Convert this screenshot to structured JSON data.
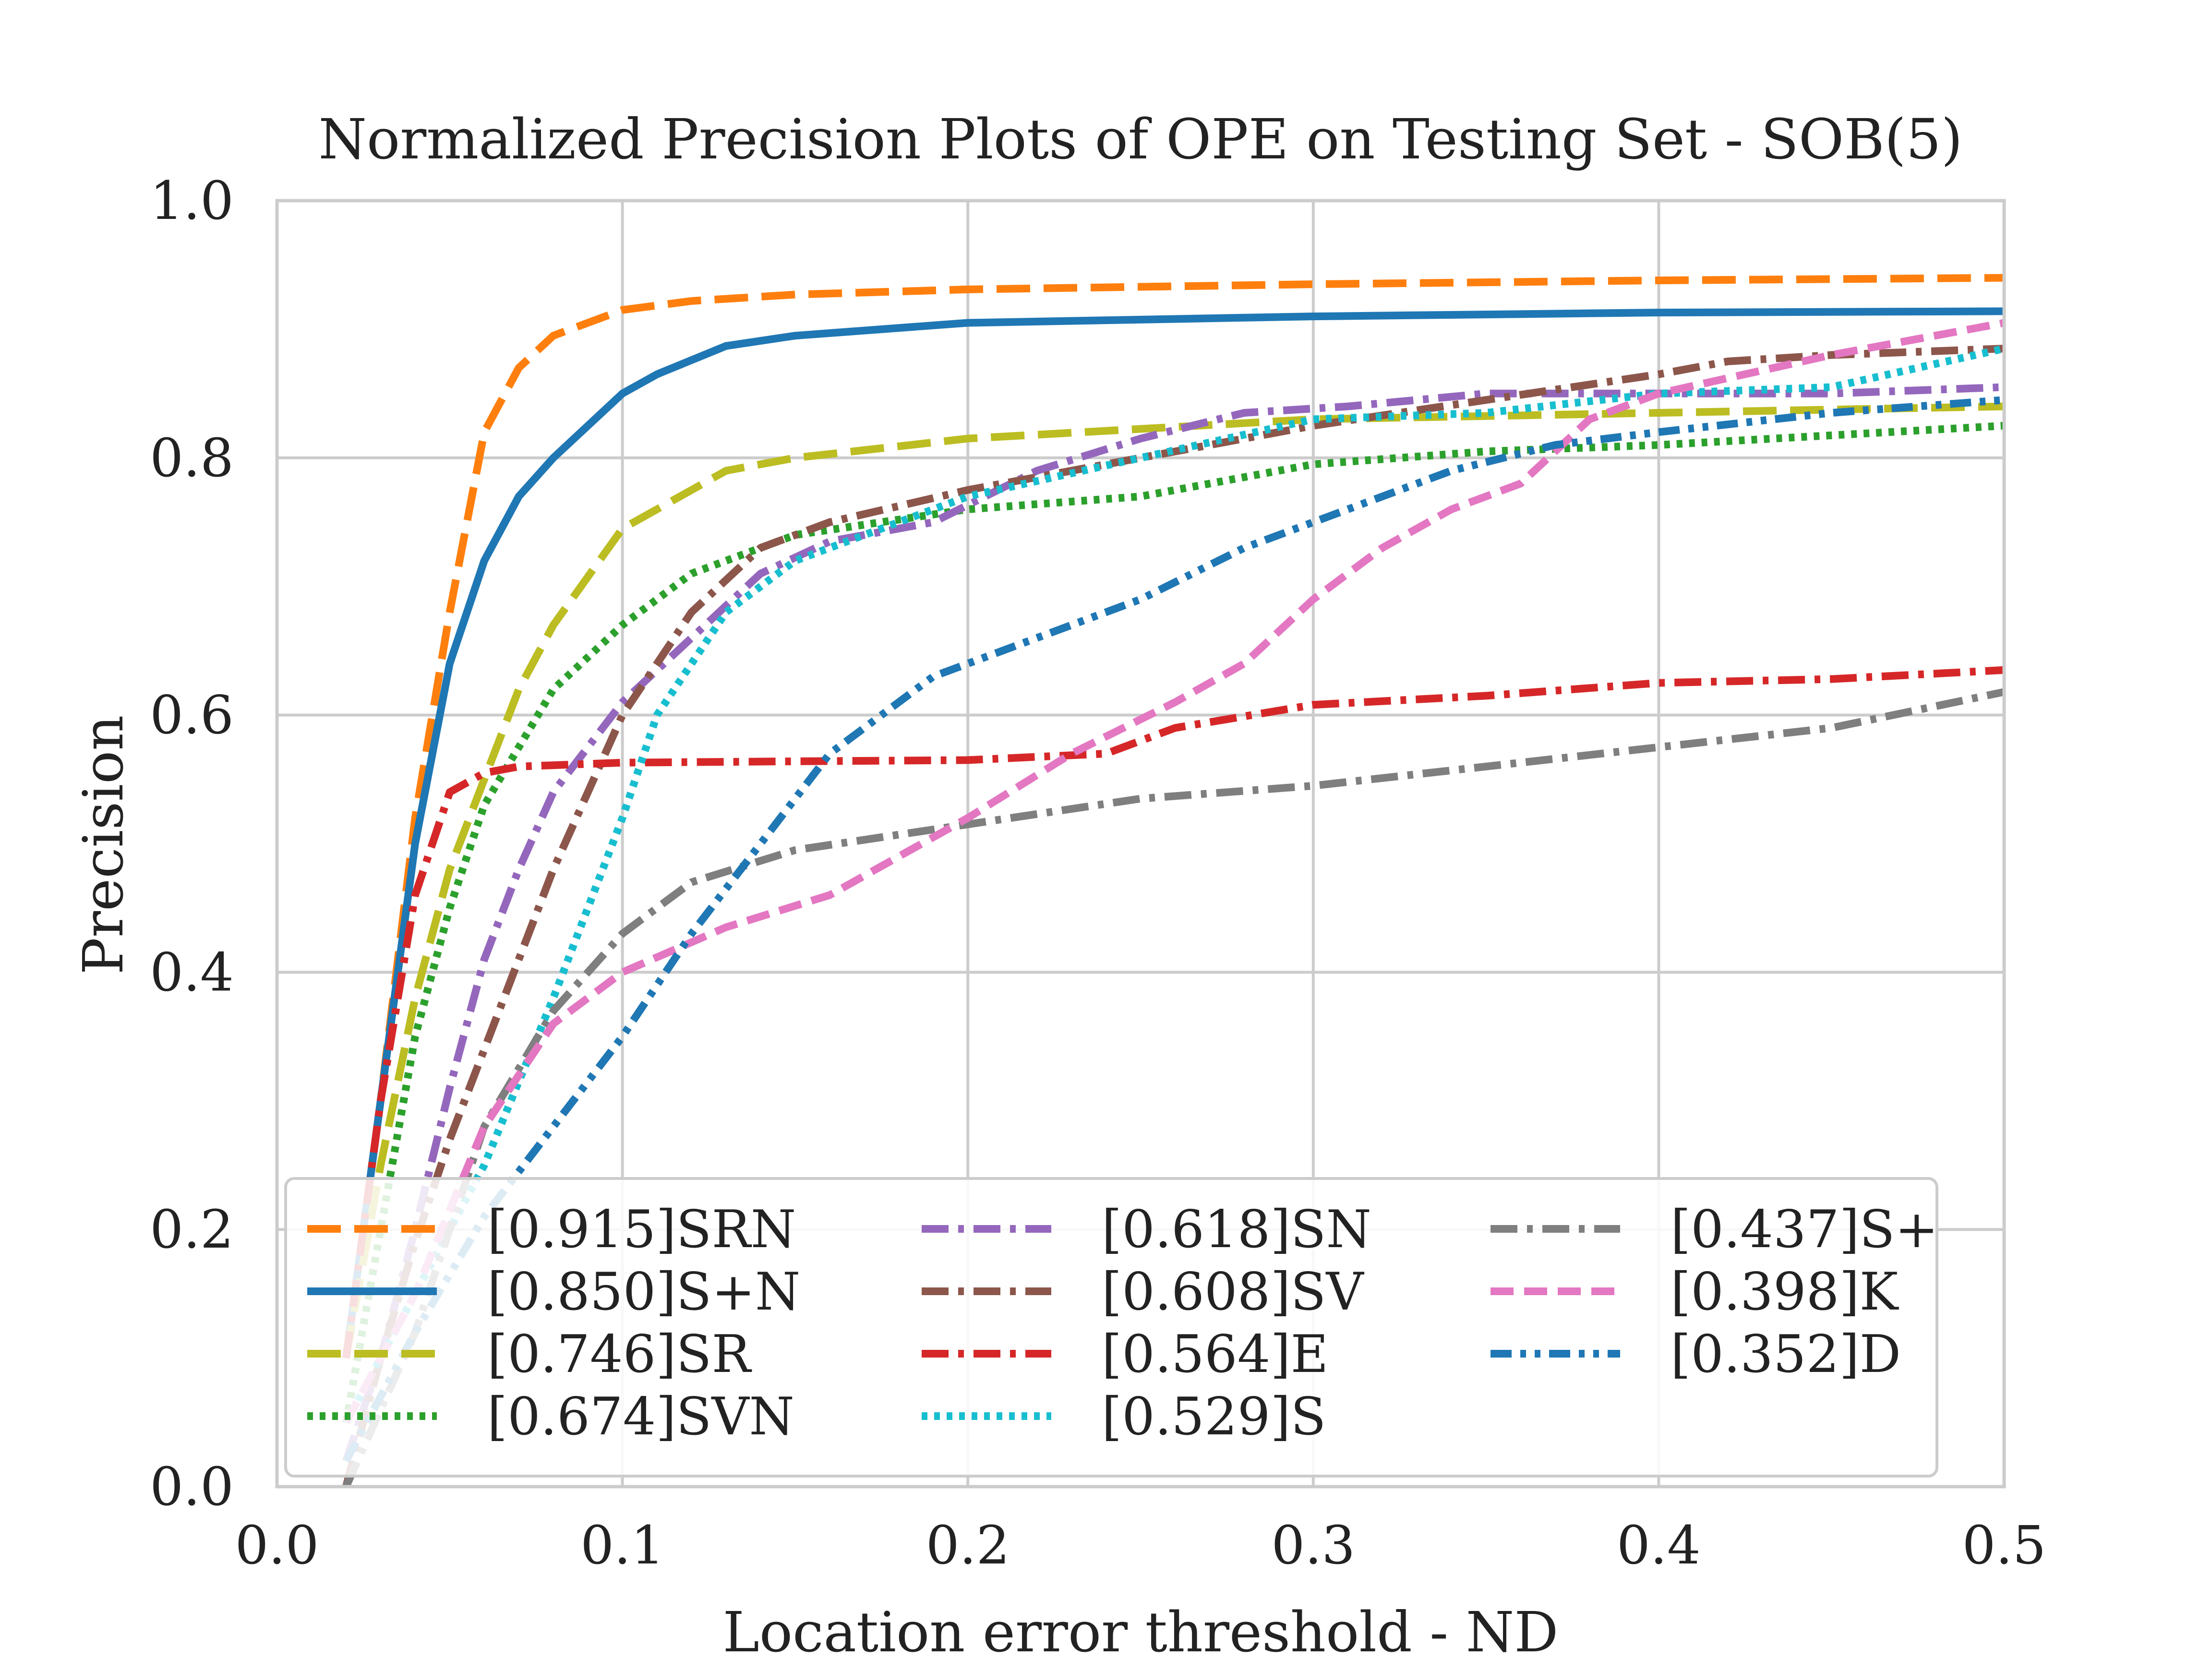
{
  "chart_data": {
    "type": "line",
    "title": "Normalized Precision Plots of OPE on Testing Set - SOB(5)",
    "xlabel": "Location error threshold - ND",
    "ylabel": "Precision",
    "xlim": [
      0.0,
      0.5
    ],
    "ylim": [
      0.0,
      1.0
    ],
    "xticks": [
      "0.0",
      "0.1",
      "0.2",
      "0.3",
      "0.4",
      "0.5"
    ],
    "yticks": [
      "0.0",
      "0.2",
      "0.4",
      "0.6",
      "0.8",
      "1.0"
    ],
    "grid": true,
    "legend_position": "lower-right",
    "legend_columns": 3,
    "series": [
      {
        "name": "[0.915]SRN",
        "color": "#ff7f0e",
        "dash": "long-dash",
        "x": [
          0.02,
          0.03,
          0.04,
          0.05,
          0.06,
          0.07,
          0.08,
          0.1,
          0.12,
          0.15,
          0.2,
          0.3,
          0.4,
          0.5
        ],
        "y": [
          0.1,
          0.3,
          0.52,
          0.68,
          0.82,
          0.87,
          0.895,
          0.915,
          0.922,
          0.927,
          0.931,
          0.935,
          0.938,
          0.94
        ]
      },
      {
        "name": "[0.850]S+N",
        "color": "#1f77b4",
        "dash": "solid",
        "x": [
          0.02,
          0.03,
          0.04,
          0.05,
          0.06,
          0.07,
          0.08,
          0.1,
          0.11,
          0.13,
          0.15,
          0.2,
          0.3,
          0.4,
          0.5
        ],
        "y": [
          0.1,
          0.3,
          0.5,
          0.64,
          0.72,
          0.77,
          0.8,
          0.85,
          0.865,
          0.887,
          0.895,
          0.905,
          0.91,
          0.913,
          0.914
        ]
      },
      {
        "name": "[0.746]SR",
        "color": "#bcbd22",
        "dash": "long-dash",
        "x": [
          0.02,
          0.03,
          0.04,
          0.05,
          0.06,
          0.07,
          0.08,
          0.1,
          0.13,
          0.15,
          0.2,
          0.3,
          0.4,
          0.5
        ],
        "y": [
          0.1,
          0.25,
          0.38,
          0.48,
          0.55,
          0.62,
          0.67,
          0.745,
          0.79,
          0.8,
          0.815,
          0.83,
          0.835,
          0.84
        ]
      },
      {
        "name": "[0.674]SVN",
        "color": "#2ca02c",
        "dash": "dotted",
        "x": [
          0.02,
          0.03,
          0.04,
          0.05,
          0.06,
          0.08,
          0.1,
          0.12,
          0.15,
          0.2,
          0.25,
          0.3,
          0.35,
          0.4,
          0.5
        ],
        "y": [
          0.05,
          0.2,
          0.35,
          0.45,
          0.53,
          0.62,
          0.67,
          0.71,
          0.74,
          0.76,
          0.77,
          0.795,
          0.805,
          0.81,
          0.825
        ]
      },
      {
        "name": "[0.618]SN",
        "color": "#9467bd",
        "dash": "dash-dot",
        "x": [
          0.02,
          0.03,
          0.04,
          0.05,
          0.06,
          0.07,
          0.08,
          0.1,
          0.12,
          0.14,
          0.16,
          0.19,
          0.22,
          0.25,
          0.28,
          0.31,
          0.35,
          0.4,
          0.45,
          0.5
        ],
        "y": [
          0.02,
          0.1,
          0.2,
          0.31,
          0.41,
          0.48,
          0.54,
          0.61,
          0.66,
          0.71,
          0.735,
          0.75,
          0.79,
          0.815,
          0.835,
          0.84,
          0.85,
          0.85,
          0.85,
          0.855
        ]
      },
      {
        "name": "[0.608]SV",
        "color": "#8c564b",
        "dash": "dash-dot",
        "x": [
          0.02,
          0.03,
          0.04,
          0.05,
          0.06,
          0.07,
          0.08,
          0.1,
          0.12,
          0.14,
          0.16,
          0.2,
          0.25,
          0.3,
          0.35,
          0.4,
          0.42,
          0.45,
          0.5
        ],
        "y": [
          0.0,
          0.1,
          0.19,
          0.27,
          0.34,
          0.41,
          0.48,
          0.6,
          0.68,
          0.73,
          0.75,
          0.775,
          0.8,
          0.825,
          0.845,
          0.865,
          0.875,
          0.88,
          0.885
        ]
      },
      {
        "name": "[0.564]E",
        "color": "#d62728",
        "dash": "dash-dot",
        "x": [
          0.02,
          0.03,
          0.04,
          0.05,
          0.06,
          0.07,
          0.1,
          0.15,
          0.2,
          0.24,
          0.26,
          0.3,
          0.35,
          0.4,
          0.45,
          0.5
        ],
        "y": [
          0.1,
          0.3,
          0.46,
          0.54,
          0.555,
          0.56,
          0.563,
          0.564,
          0.565,
          0.57,
          0.59,
          0.608,
          0.615,
          0.625,
          0.628,
          0.635
        ]
      },
      {
        "name": "[0.529]S",
        "color": "#17becf",
        "dash": "dotted",
        "x": [
          0.02,
          0.04,
          0.06,
          0.08,
          0.1,
          0.11,
          0.13,
          0.15,
          0.18,
          0.2,
          0.25,
          0.3,
          0.35,
          0.4,
          0.45,
          0.5
        ],
        "y": [
          0.05,
          0.15,
          0.25,
          0.38,
          0.52,
          0.6,
          0.68,
          0.72,
          0.75,
          0.77,
          0.8,
          0.83,
          0.835,
          0.85,
          0.855,
          0.885
        ]
      },
      {
        "name": "[0.437]S+",
        "color": "#7f7f7f",
        "dash": "dash-dot",
        "x": [
          0.02,
          0.04,
          0.06,
          0.08,
          0.1,
          0.12,
          0.15,
          0.2,
          0.25,
          0.3,
          0.35,
          0.4,
          0.45,
          0.5
        ],
        "y": [
          0.0,
          0.12,
          0.28,
          0.37,
          0.43,
          0.47,
          0.495,
          0.515,
          0.535,
          0.545,
          0.56,
          0.575,
          0.59,
          0.618
        ]
      },
      {
        "name": "[0.398]K",
        "color": "#e377c2",
        "dash": "dashed",
        "x": [
          0.02,
          0.04,
          0.06,
          0.08,
          0.1,
          0.13,
          0.16,
          0.2,
          0.23,
          0.26,
          0.28,
          0.3,
          0.32,
          0.34,
          0.36,
          0.38,
          0.4,
          0.45,
          0.5
        ],
        "y": [
          0.05,
          0.15,
          0.28,
          0.36,
          0.4,
          0.435,
          0.46,
          0.52,
          0.57,
          0.61,
          0.64,
          0.69,
          0.73,
          0.76,
          0.78,
          0.83,
          0.85,
          0.88,
          0.905
        ]
      },
      {
        "name": "[0.352]D",
        "color": "#1f77b4",
        "dash": "dash-dot-dot",
        "x": [
          0.02,
          0.04,
          0.06,
          0.08,
          0.1,
          0.12,
          0.14,
          0.16,
          0.19,
          0.22,
          0.25,
          0.28,
          0.31,
          0.34,
          0.37,
          0.4,
          0.45,
          0.5
        ],
        "y": [
          0.02,
          0.12,
          0.21,
          0.28,
          0.35,
          0.43,
          0.5,
          0.57,
          0.63,
          0.66,
          0.69,
          0.73,
          0.76,
          0.79,
          0.81,
          0.82,
          0.835,
          0.845
        ]
      }
    ]
  }
}
